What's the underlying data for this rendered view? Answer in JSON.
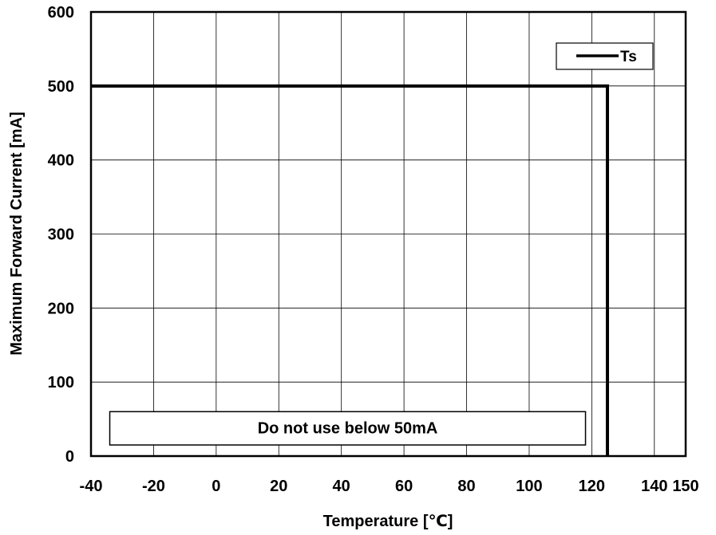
{
  "chart_data": {
    "type": "line",
    "xlabel": "Temperature [℃]",
    "ylabel": "Maximum Forward Current [mA]",
    "xlim": [
      -40,
      150
    ],
    "ylim": [
      0,
      600
    ],
    "x_ticks": [
      -40,
      -20,
      0,
      20,
      40,
      60,
      80,
      100,
      120,
      140,
      150
    ],
    "x_tick_labels": [
      "-40",
      "-20",
      "0",
      "20",
      "40",
      "60",
      "80",
      "100",
      "120",
      "140",
      "150"
    ],
    "y_ticks": [
      0,
      100,
      200,
      300,
      400,
      500,
      600
    ],
    "y_tick_labels": [
      "0",
      "100",
      "200",
      "300",
      "400",
      "500",
      "600"
    ],
    "grid": true,
    "legend_position": "top-right",
    "series": [
      {
        "name": "Ts",
        "color": "#000000",
        "x": [
          -40,
          125,
          125
        ],
        "y": [
          500,
          500,
          0
        ]
      }
    ],
    "annotations": [
      {
        "text": "Do not use below 50mA",
        "x_range": [
          -34,
          118
        ],
        "y_range": [
          15,
          60
        ]
      }
    ]
  }
}
